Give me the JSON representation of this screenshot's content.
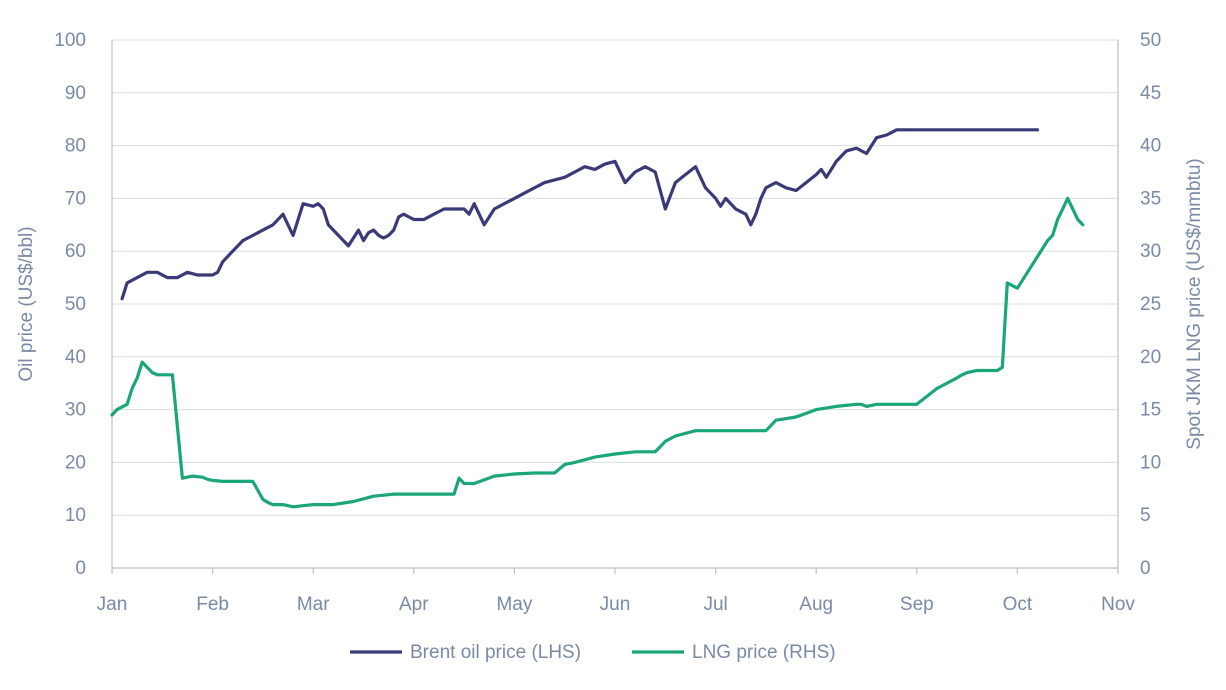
{
  "chart_data": {
    "type": "line",
    "title": "",
    "x_categories": [
      "Jan",
      "Feb",
      "Mar",
      "Apr",
      "May",
      "Jun",
      "Jul",
      "Aug",
      "Sep",
      "Oct",
      "Nov"
    ],
    "y_left": {
      "label": "Oil price (US$/bbl)",
      "ylim": [
        0,
        100
      ],
      "ticks": [
        0,
        10,
        20,
        30,
        40,
        50,
        60,
        70,
        80,
        90,
        100
      ]
    },
    "y_right": {
      "label": "Spot JKM LNG price (US$/mmbtu)",
      "ylim": [
        0,
        50
      ],
      "ticks": [
        0,
        5,
        10,
        15,
        20,
        25,
        30,
        35,
        40,
        45,
        50
      ]
    },
    "grid": true,
    "legend_position": "bottom",
    "series": [
      {
        "name": "Brent oil price (LHS)",
        "axis": "left",
        "color": "#3b3a78",
        "x": [
          0.1,
          0.15,
          0.25,
          0.35,
          0.45,
          0.55,
          0.65,
          0.75,
          0.85,
          0.95,
          1.0,
          1.05,
          1.1,
          1.2,
          1.3,
          1.4,
          1.5,
          1.6,
          1.7,
          1.75,
          1.8,
          1.9,
          2.0,
          2.05,
          2.1,
          2.15,
          2.25,
          2.35,
          2.45,
          2.5,
          2.55,
          2.6,
          2.65,
          2.7,
          2.75,
          2.8,
          2.85,
          2.9,
          3.0,
          3.1,
          3.2,
          3.3,
          3.4,
          3.5,
          3.55,
          3.6,
          3.7,
          3.8,
          3.9,
          4.0,
          4.1,
          4.2,
          4.3,
          4.4,
          4.5,
          4.6,
          4.7,
          4.8,
          4.9,
          5.0,
          5.1,
          5.2,
          5.3,
          5.4,
          5.5,
          5.6,
          5.7,
          5.8,
          5.9,
          6.0,
          6.05,
          6.1,
          6.2,
          6.3,
          6.35,
          6.4,
          6.45,
          6.5,
          6.6,
          6.7,
          6.8,
          6.9,
          7.0,
          7.05,
          7.1,
          7.2,
          7.3,
          7.4,
          7.5,
          7.55,
          7.6,
          7.7,
          7.8,
          7.9,
          8.0,
          8.1,
          8.2,
          8.25,
          8.3,
          8.4,
          8.5,
          8.6,
          8.7,
          8.8,
          8.9,
          9.0,
          9.05,
          9.1,
          9.2
        ],
        "values": [
          51,
          54,
          55,
          56,
          56,
          55,
          55,
          56,
          55.5,
          55.5,
          55.5,
          56,
          58,
          60,
          62,
          63,
          64,
          65,
          67,
          65,
          63,
          69,
          68.5,
          69,
          68,
          65,
          63,
          61,
          64,
          62,
          63.5,
          64,
          63,
          62.5,
          63,
          64,
          66.5,
          67,
          66,
          66,
          67,
          68,
          68,
          68,
          67,
          69,
          65,
          68,
          69,
          70,
          71,
          72,
          73,
          73.5,
          74,
          75,
          76,
          75.5,
          76.5,
          77,
          73,
          75,
          76,
          75,
          68,
          73,
          74.5,
          76,
          72,
          70,
          68.5,
          70,
          68,
          67,
          65,
          67,
          70,
          72,
          73,
          72,
          71.5,
          73,
          74.5,
          75.5,
          74,
          77,
          79,
          79.5,
          78.5,
          80,
          81.5,
          82,
          83,
          83,
          83,
          83,
          83,
          83,
          83,
          83,
          83,
          83,
          83,
          83,
          83,
          83,
          83,
          83,
          83
        ]
      },
      {
        "name": "LNG price (RHS)",
        "axis": "right",
        "color": "#1aa676",
        "x": [
          -0.05,
          0.05,
          0.15,
          0.2,
          0.25,
          0.3,
          0.35,
          0.4,
          0.45,
          0.5,
          0.6,
          0.7,
          0.8,
          0.9,
          0.95,
          1.0,
          1.1,
          1.2,
          1.3,
          1.4,
          1.5,
          1.55,
          1.6,
          1.7,
          1.8,
          1.9,
          2.0,
          2.2,
          2.4,
          2.6,
          2.8,
          3.0,
          3.2,
          3.4,
          3.45,
          3.5,
          3.6,
          3.8,
          4.0,
          4.2,
          4.4,
          4.5,
          4.6,
          4.8,
          5.0,
          5.2,
          5.4,
          5.45,
          5.5,
          5.6,
          5.8,
          6.0,
          6.1,
          6.2,
          6.4,
          6.5,
          6.6,
          6.8,
          7.0,
          7.2,
          7.4,
          7.45,
          7.5,
          7.6,
          7.8,
          8.0,
          8.2,
          8.4,
          8.45,
          8.5,
          8.6,
          8.8,
          8.85,
          8.9,
          9.0,
          9.1,
          9.2,
          9.3,
          9.35,
          9.4,
          9.5,
          9.6,
          9.65
        ],
        "values": [
          14.5,
          15,
          15.5,
          17,
          18,
          19.5,
          19,
          18.5,
          18.3,
          18.3,
          18.3,
          8.5,
          8.7,
          8.6,
          8.4,
          8.3,
          8.2,
          8.2,
          8.2,
          8.2,
          6.5,
          6.2,
          6.0,
          6.0,
          5.8,
          5.9,
          6.0,
          6.0,
          6.3,
          6.8,
          7.0,
          7.0,
          7.0,
          7.0,
          8.5,
          8.0,
          8.0,
          8.7,
          8.9,
          9.0,
          9.0,
          9.8,
          10.0,
          10.5,
          10.8,
          11.0,
          11.0,
          11.5,
          12.0,
          12.5,
          13.0,
          13.0,
          13.0,
          13.0,
          13.0,
          13.0,
          14.0,
          14.3,
          15.0,
          15.3,
          15.5,
          15.5,
          15.3,
          15.5,
          15.5,
          15.5,
          17.0,
          18.0,
          18.3,
          18.5,
          18.7,
          18.7,
          19.0,
          27.0,
          26.5,
          28.0,
          29.5,
          31.0,
          31.5,
          33.0,
          35.0,
          33.0,
          32.5
        ]
      }
    ]
  }
}
